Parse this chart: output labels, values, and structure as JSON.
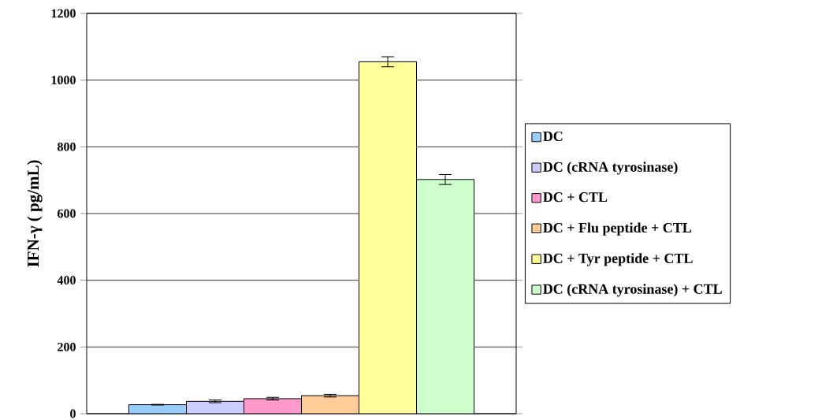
{
  "chart_data": {
    "type": "bar",
    "categories": [
      null
    ],
    "ylabel": "IFN-γ ( pg/mL)",
    "ylim": [
      0,
      1200
    ],
    "yticks": [
      0,
      200,
      400,
      600,
      800,
      1000,
      1200
    ],
    "grid": "y",
    "legend": "right",
    "series": [
      {
        "name": "DC",
        "color": "#99ccff",
        "values": [
          27
        ],
        "errors": [
          1
        ]
      },
      {
        "name": "DC (cRNA tyrosinase)",
        "color": "#ccccff",
        "values": [
          37
        ],
        "errors": [
          4
        ]
      },
      {
        "name": "DC + CTL",
        "color": "#ff99cc",
        "values": [
          45
        ],
        "errors": [
          4
        ]
      },
      {
        "name": "DC + Flu peptide + CTL",
        "color": "#ffcc99",
        "values": [
          54
        ],
        "errors": [
          4
        ]
      },
      {
        "name": "DC + Tyr peptide + CTL",
        "color": "#ffff99",
        "values": [
          1055
        ],
        "errors": [
          15
        ]
      },
      {
        "name": "DC (cRNA tyrosinase) + CTL",
        "color": "#ccffcc",
        "values": [
          702
        ],
        "errors": [
          15
        ]
      }
    ]
  }
}
